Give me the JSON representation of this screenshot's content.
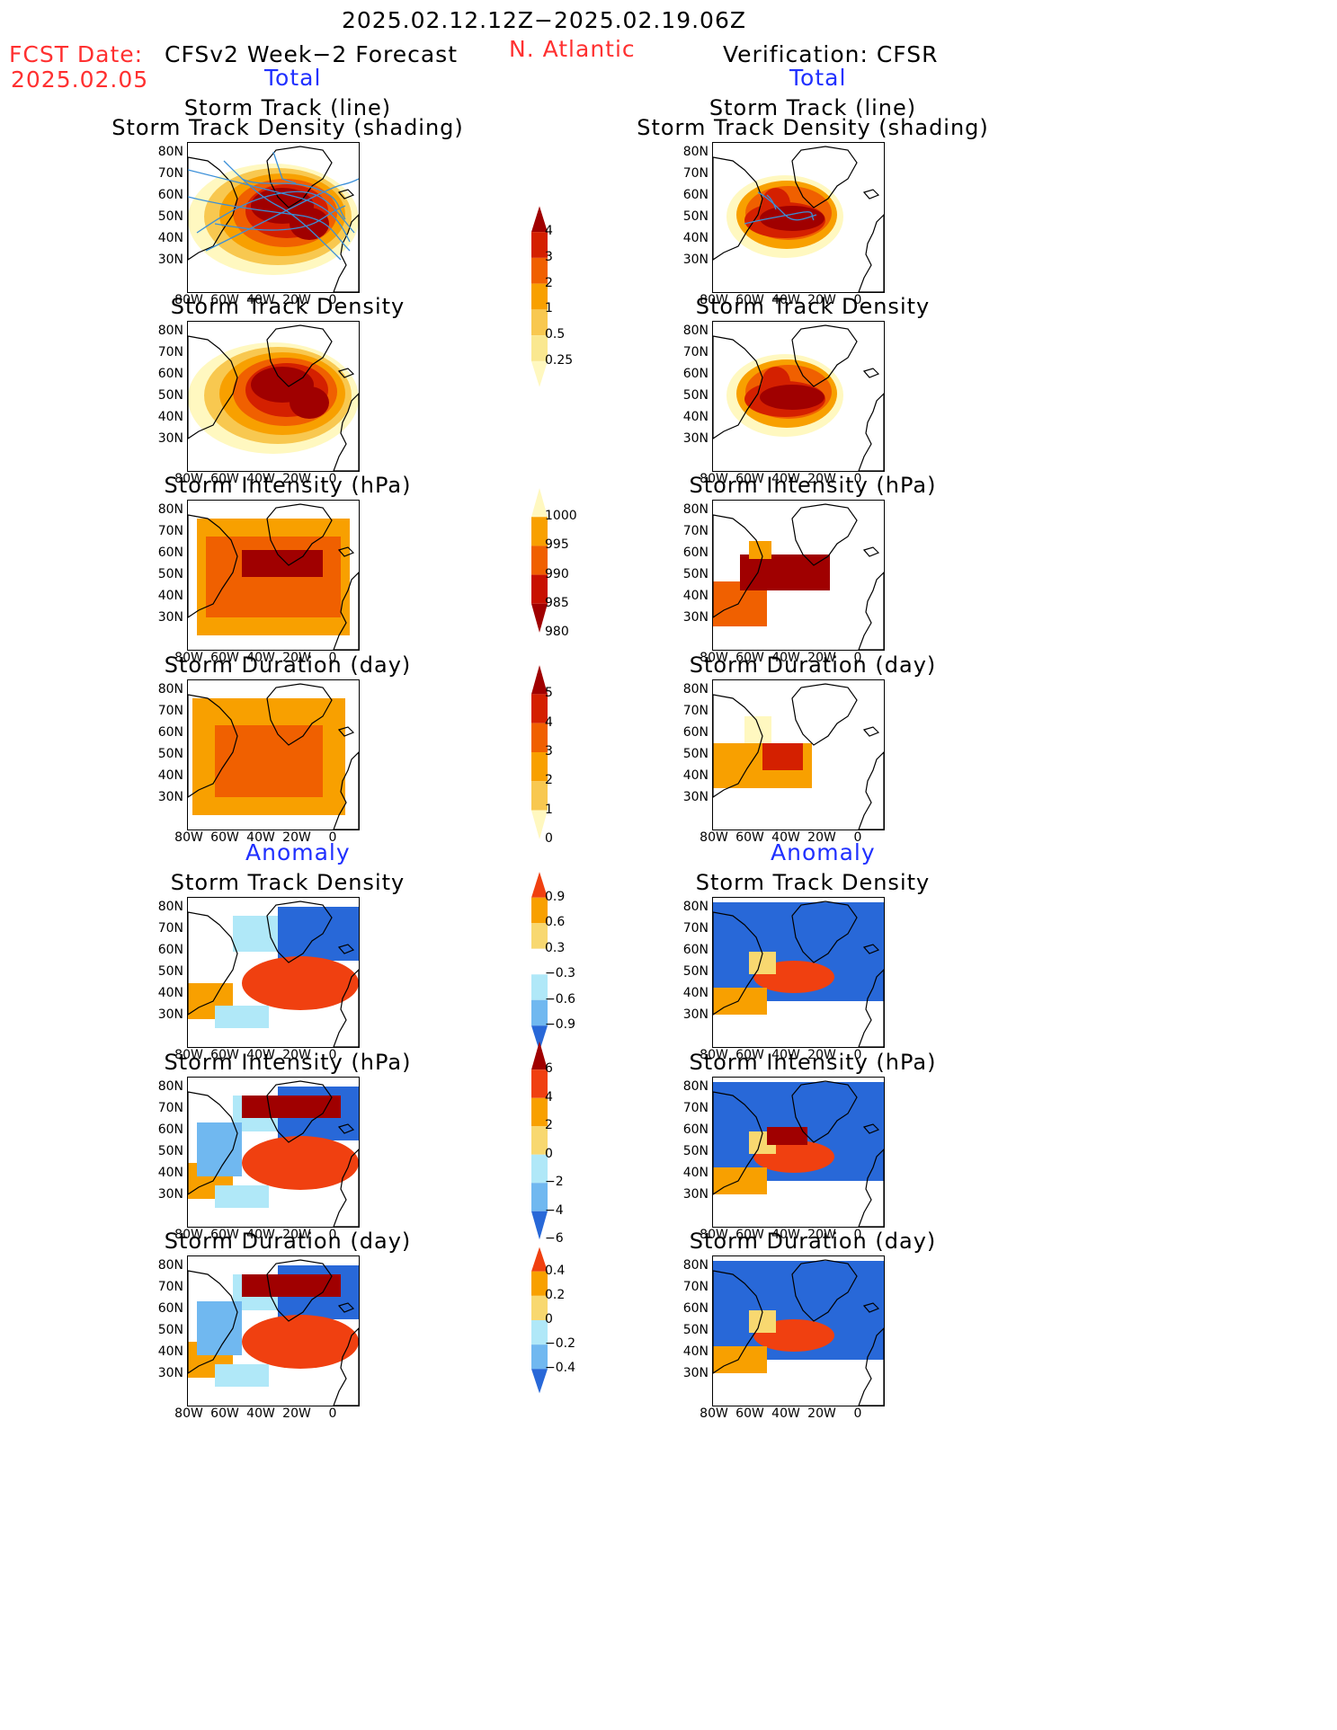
{
  "header": {
    "date_range": "2025.02.12.12Z−2025.02.19.06Z",
    "fcst_date_label": "FCST Date:",
    "fcst_date": "2025.02.05",
    "left_title": "CFSv2 Week−2 Forecast",
    "region": "N. Atlantic",
    "right_title": "Verification: CFSR",
    "total_label": "Total",
    "anomaly_label": "Anomaly"
  },
  "panel_titles": {
    "track_line": "Storm Track (line)",
    "track_shading": "Storm Track Density (shading)",
    "density": "Storm Track Density",
    "intensity": "Storm Intensity (hPa)",
    "duration": "Storm Duration (day)"
  },
  "axes": {
    "lat_ticks": [
      "80N",
      "70N",
      "60N",
      "50N",
      "40N",
      "30N"
    ],
    "lon_ticks": [
      "80W",
      "60W",
      "40W",
      "20W",
      "0"
    ]
  },
  "colorbars": {
    "density_total": {
      "labels": [
        "4",
        "3",
        "2",
        "1",
        "0.5",
        "0.25"
      ],
      "colors": [
        "#a00000",
        "#d42000",
        "#f06000",
        "#f8a000",
        "#f8c850",
        "#fae890",
        "#fff8c0"
      ]
    },
    "intensity_total": {
      "labels": [
        "1000",
        "995",
        "990",
        "985",
        "980"
      ],
      "colors": [
        "#fff8c0",
        "#f8a000",
        "#f06000",
        "#c81000",
        "#a00000"
      ]
    },
    "duration_total": {
      "labels": [
        "5",
        "4",
        "3",
        "2",
        "1",
        "0"
      ],
      "colors": [
        "#a00000",
        "#d42000",
        "#f06000",
        "#f8a000",
        "#f8c850",
        "#fff8c0"
      ]
    },
    "density_anom": {
      "labels": [
        "0.9",
        "0.6",
        "0.3",
        "−0.3",
        "−0.6",
        "−0.9"
      ],
      "colors": [
        "#f04010",
        "#f8a000",
        "#f8d870",
        "#ffffff",
        "#b0e8f8",
        "#70b8f0",
        "#2868d8"
      ]
    },
    "intensity_anom": {
      "labels": [
        "6",
        "4",
        "2",
        "0",
        "−2",
        "−4",
        "−6"
      ],
      "colors": [
        "#a00000",
        "#f04010",
        "#f8a000",
        "#f8d870",
        "#b0e8f8",
        "#70b8f0",
        "#2868d8"
      ]
    },
    "duration_anom": {
      "labels": [
        "0.4",
        "0.2",
        "0",
        "−0.2",
        "−0.4"
      ],
      "colors": [
        "#f04010",
        "#f8a000",
        "#f8d870",
        "#b0e8f8",
        "#70b8f0",
        "#2868d8"
      ]
    }
  }
}
